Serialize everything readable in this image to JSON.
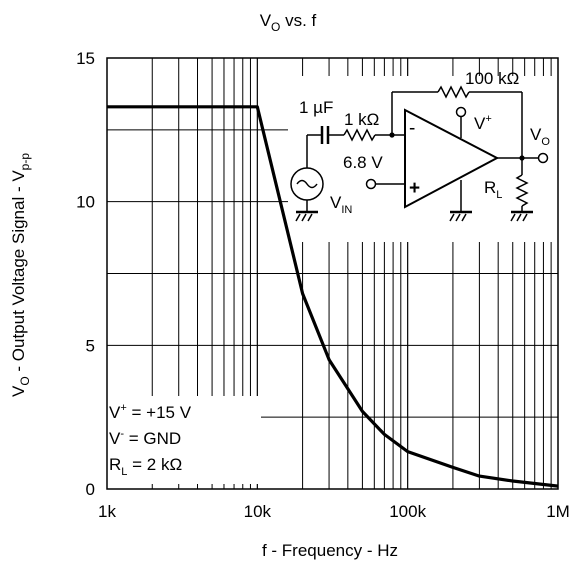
{
  "chart_data": {
    "type": "line",
    "title": "V",
    "title_sub": "O",
    "title_rest": " vs. f",
    "xlabel": "f - Frequency - Hz",
    "ylabel_main": "V",
    "ylabel_sub1": "O",
    "ylabel_mid": " - Output Voltage Signal - V",
    "ylabel_sub2": "p-p",
    "xscale": "log",
    "xlim": [
      1000,
      1000000
    ],
    "ylim": [
      0,
      15
    ],
    "grid": true,
    "x_ticks": [
      {
        "value": 1000,
        "label": "1k"
      },
      {
        "value": 10000,
        "label": "10k"
      },
      {
        "value": 100000,
        "label": "100k"
      },
      {
        "value": 1000000,
        "label": "1M"
      }
    ],
    "y_ticks": [
      {
        "value": 0,
        "label": "0"
      },
      {
        "value": 5,
        "label": "5"
      },
      {
        "value": 10,
        "label": "10"
      },
      {
        "value": 15,
        "label": "15"
      }
    ],
    "series": [
      {
        "x": [
          1000,
          2000,
          5000,
          10000,
          20000,
          30000,
          50000,
          70000,
          100000,
          200000,
          300000,
          500000,
          1000000
        ],
        "y": [
          13.3,
          13.3,
          13.3,
          13.3,
          6.8,
          4.5,
          2.7,
          1.9,
          1.3,
          0.75,
          0.45,
          0.28,
          0.1
        ]
      }
    ]
  },
  "conditions": {
    "vplus_main": "V",
    "vplus_sup": "+",
    "vplus_value": " = +15 V",
    "vminus_main": "V",
    "vminus_sup": "-",
    "vminus_value": " = GND",
    "rl_main": "R",
    "rl_sub": "L",
    "rl_value": " = 2 kΩ"
  },
  "circuit": {
    "cap_label": "1 µF",
    "r1_label": "1 kΩ",
    "rf_label": "100 kΩ",
    "bias_label": "6.8 V",
    "vin_main": "V",
    "vin_sub": "IN",
    "vplus_main": "V",
    "vplus_sup": "+",
    "vo_main": "V",
    "vo_sub": "O",
    "rl_main": "R",
    "rl_sub": "L",
    "minus_sign": "-",
    "plus_sign": "+"
  }
}
